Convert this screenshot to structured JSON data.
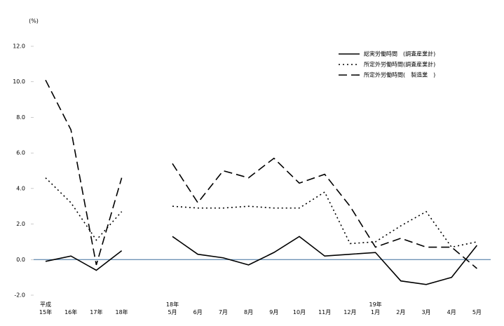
{
  "chart_data": {
    "type": "line",
    "unit_label": "(%)",
    "categories": [
      "平成\n15年",
      "16年",
      "17年",
      "18年",
      null,
      "18年\n5月",
      "6月",
      "7月",
      "8月",
      "9月",
      "10月",
      "11月",
      "12月",
      "19年\n1月",
      "2月",
      "3月",
      "4月",
      "5月"
    ],
    "series": [
      {
        "name": "総実労働時間　(調査産業計)",
        "color": "#000000",
        "dash": "solid",
        "values": [
          -0.1,
          0.2,
          -0.6,
          0.5,
          null,
          1.3,
          0.3,
          0.1,
          -0.3,
          0.4,
          1.3,
          0.2,
          0.3,
          0.4,
          -1.2,
          -1.4,
          -1.0,
          0.8
        ]
      },
      {
        "name": "所定外労働時間(調査産業計)",
        "color": "#000000",
        "dash": "dotted",
        "values": [
          4.6,
          3.2,
          1.1,
          2.7,
          null,
          3.0,
          2.9,
          2.9,
          3.0,
          2.9,
          2.9,
          3.8,
          0.9,
          1.0,
          1.9,
          2.7,
          0.7,
          1.0
        ]
      },
      {
        "name": "所定外労働時間(　製造業　)",
        "color": "#000000",
        "dash": "dashed",
        "values": [
          10.1,
          7.3,
          -0.3,
          4.6,
          null,
          5.4,
          3.2,
          5.0,
          4.6,
          5.7,
          4.3,
          4.8,
          3.0,
          0.7,
          1.2,
          0.7,
          0.7,
          -0.5
        ]
      }
    ],
    "ylim": [
      -2,
      12
    ],
    "yticks": [
      {
        "value": -2,
        "label": "-2.0"
      },
      {
        "value": 0,
        "label": "0.0"
      },
      {
        "value": 2,
        "label": "2.0"
      },
      {
        "value": 4,
        "label": "4.0"
      },
      {
        "value": 6,
        "label": "6.0"
      },
      {
        "value": 8,
        "label": "8.0"
      },
      {
        "value": 10,
        "label": "10.0"
      },
      {
        "value": 12,
        "label": "12.0"
      }
    ],
    "zero_line_color": "#3b6e9e",
    "legend": "top-right"
  }
}
